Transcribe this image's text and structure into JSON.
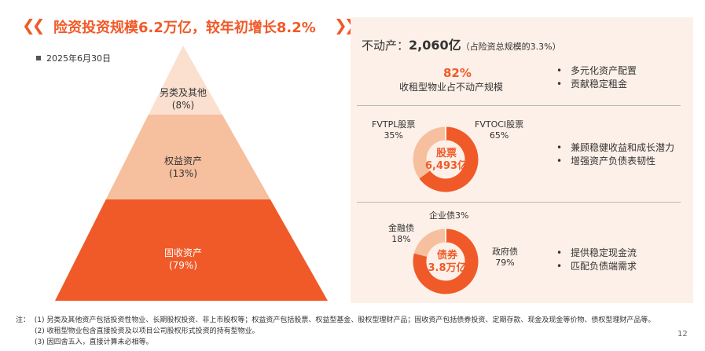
{
  "header": {
    "title": "险资投资规模6.2万亿，较年初增长8.2%",
    "date": "2025年6月30日"
  },
  "pyramid": {
    "layers": [
      {
        "name": "另类及其他",
        "pct": "(8%)",
        "color": "#fbe0d0"
      },
      {
        "name": "权益资产",
        "pct": "(13%)",
        "color": "#f6bf9e"
      },
      {
        "name": "固收资产",
        "pct": "(79%)",
        "color": "#f05a28"
      }
    ]
  },
  "real_estate": {
    "title_prefix": "不动产：",
    "amount": "2,060亿",
    "note": "（占险资总规模的3.3%）",
    "pct": "82%",
    "pct_label": "收租型物业占不动产规模",
    "bullets": [
      "多元化资产配置",
      "贡献稳定租金"
    ]
  },
  "stocks": {
    "left_label": "FVTPL股票",
    "left_pct": "35%",
    "right_label": "FVTOCI股票",
    "right_pct": "65%",
    "center_title": "股票",
    "center_value": "6,493亿",
    "bullets": [
      "兼顾稳健收益和成长潜力",
      "增强资产负债表韧性"
    ]
  },
  "bonds": {
    "top_label": "企业债3%",
    "left_label": "金融债",
    "left_pct": "18%",
    "right_label": "政府债",
    "right_pct": "79%",
    "center_title": "债券",
    "center_value": "3.8万亿",
    "bullets": [
      "提供稳定现金流",
      "匹配负债端需求"
    ]
  },
  "chart_data": [
    {
      "type": "pie",
      "title": "股票",
      "categories": [
        "FVTPL股票",
        "FVTOCI股票"
      ],
      "values": [
        35,
        65
      ]
    },
    {
      "type": "pie",
      "title": "债券",
      "categories": [
        "政府债",
        "金融债",
        "企业债"
      ],
      "values": [
        79,
        18,
        3
      ]
    }
  ],
  "colors": {
    "accent": "#f05a28",
    "light": "#f6bf9e",
    "panel": "#fdf0e8"
  },
  "notes": {
    "label": "注：",
    "lines": [
      "(1) 另类及其他资产包括投资性物业、长期股权投资、非上市股权等；权益资产包括股票、权益型基金、股权型理财产品；固收资产包括债券投资、定期存款、现金及现金等价物、债权型理财产品等。",
      "(2) 收租型物业包含直接投资及以项目公司股权形式投资的持有型物业。",
      "(3) 因四舍五入，直接计算未必相等。"
    ]
  },
  "page_number": "12"
}
